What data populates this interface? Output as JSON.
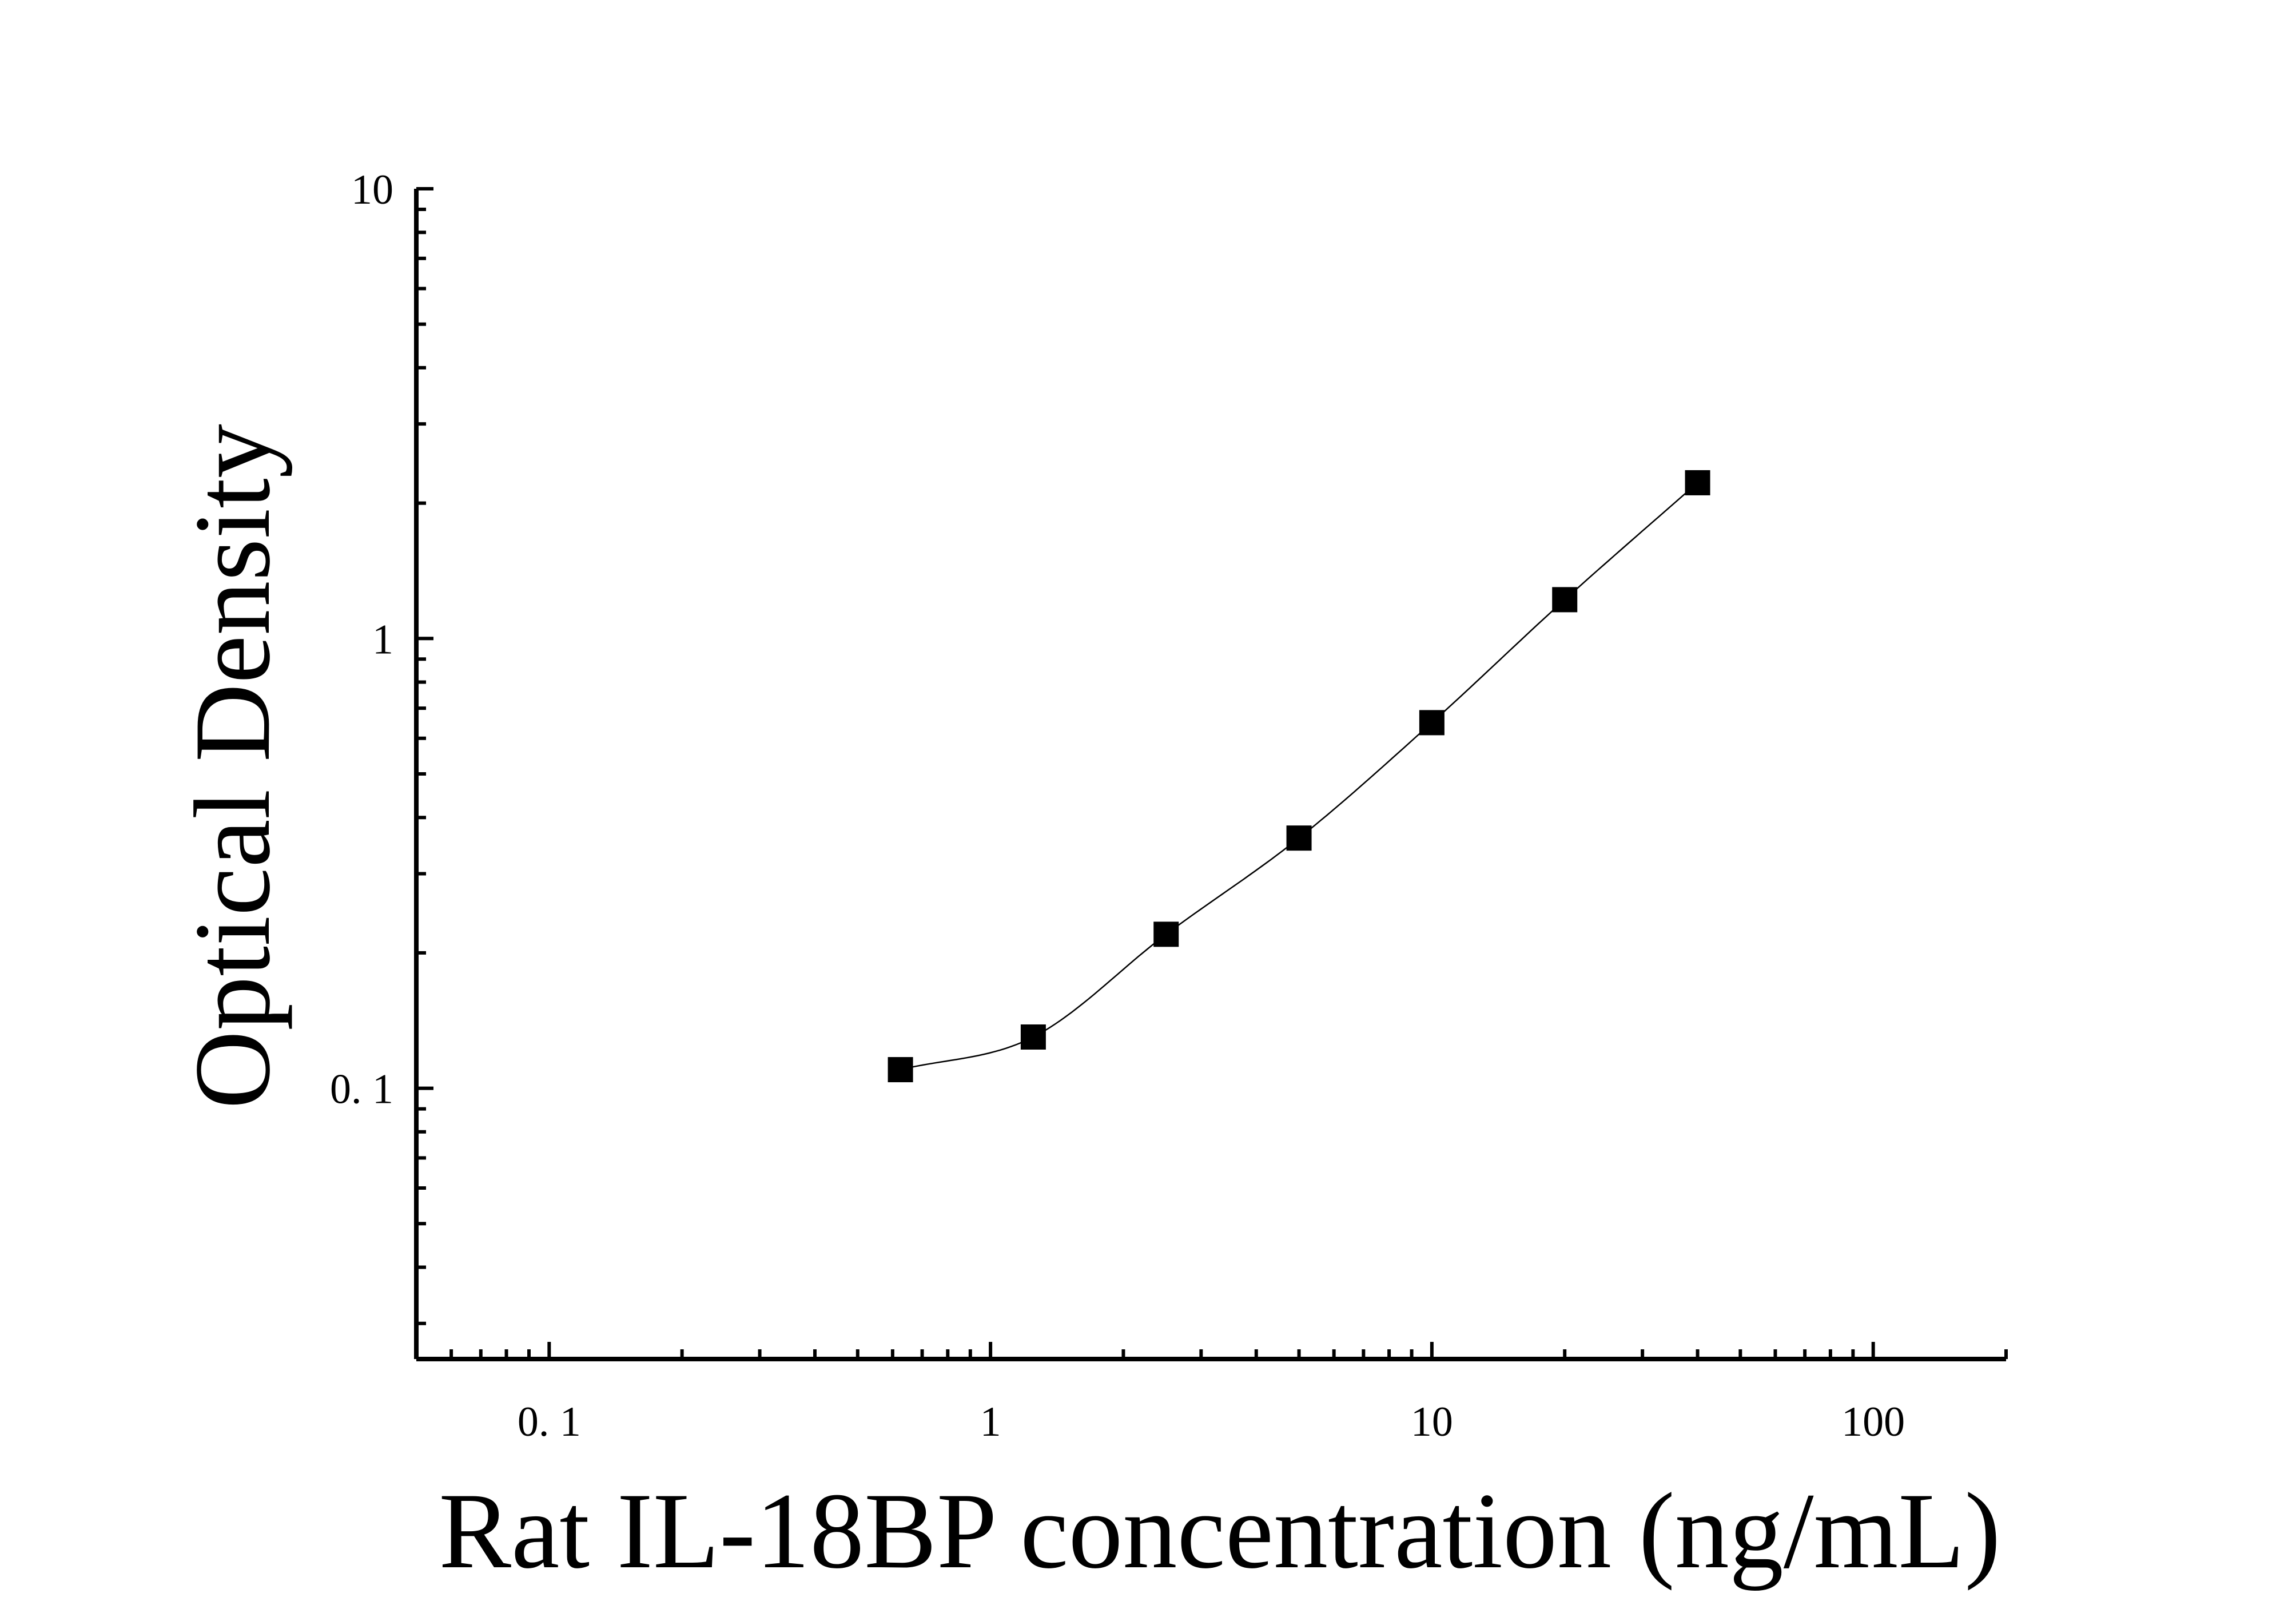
{
  "chart_data": {
    "type": "scatter",
    "title": "",
    "xlabel": "Rat IL-18BP concentration (ng/mL)",
    "ylabel": "Optical Density",
    "xscale": "log",
    "yscale": "log",
    "xlim": [
      0.05,
      200
    ],
    "ylim": [
      0.025,
      10
    ],
    "x_ticks": [
      0.1,
      1,
      10,
      100
    ],
    "x_tick_labels": [
      "0. 1",
      "1",
      "10",
      "100"
    ],
    "y_ticks": [
      0.1,
      1,
      10
    ],
    "y_tick_labels": [
      "0. 1",
      "1",
      "10"
    ],
    "grid": false,
    "legend": "none",
    "marker": "square",
    "series": [
      {
        "x": [
          0.625,
          1.25,
          2.5,
          5,
          10,
          20,
          40
        ],
        "y": [
          0.11,
          0.13,
          0.22,
          0.36,
          0.65,
          1.22,
          2.22
        ]
      }
    ],
    "fit": "smooth curve through points",
    "colors": {
      "axis": "#000000",
      "marker": "#000000",
      "line": "#000000"
    }
  }
}
